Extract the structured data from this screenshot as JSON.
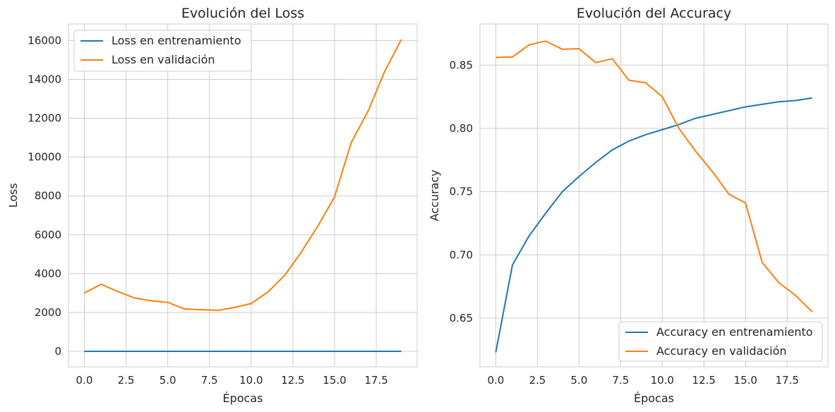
{
  "colors": {
    "train": "#1f77b4",
    "val": "#ff7f0e",
    "grid": "#cccccc",
    "text": "#262626"
  },
  "chart_data": [
    {
      "type": "line",
      "title": "Evolución del Loss",
      "xlabel": "Épocas",
      "ylabel": "Loss",
      "xlim": [
        -0.95,
        19.95
      ],
      "ylim": [
        -800,
        16850
      ],
      "xticks": [
        0,
        2.5,
        5,
        7.5,
        10,
        12.5,
        15,
        17.5
      ],
      "xtick_labels": [
        "0.0",
        "2.5",
        "5.0",
        "7.5",
        "10.0",
        "12.5",
        "15.0",
        "17.5"
      ],
      "yticks": [
        0,
        2000,
        4000,
        6000,
        8000,
        10000,
        12000,
        14000,
        16000
      ],
      "ytick_labels": [
        "0",
        "2000",
        "4000",
        "6000",
        "8000",
        "10000",
        "12000",
        "14000",
        "16000"
      ],
      "grid": true,
      "legend": "upper-left",
      "x": [
        0,
        1,
        2,
        3,
        4,
        5,
        6,
        7,
        8,
        9,
        10,
        11,
        12,
        13,
        14,
        15,
        16,
        17,
        18,
        19
      ],
      "series": [
        {
          "name": "Loss en entrenamiento",
          "color_key": "train",
          "values": [
            0.4,
            0.4,
            0.4,
            0.4,
            0.4,
            0.4,
            0.4,
            0.4,
            0.4,
            0.4,
            0.4,
            0.4,
            0.4,
            0.4,
            0.4,
            0.4,
            0.4,
            0.4,
            0.4,
            0.4
          ]
        },
        {
          "name": "Loss en validación",
          "color_key": "val",
          "values": [
            3000,
            3450,
            3080,
            2750,
            2600,
            2520,
            2180,
            2140,
            2110,
            2260,
            2460,
            3050,
            3900,
            5100,
            6450,
            7950,
            10750,
            12350,
            14400,
            16050
          ]
        }
      ]
    },
    {
      "type": "line",
      "title": "Evolución del Accuracy",
      "xlabel": "Épocas",
      "ylabel": "Accuracy",
      "xlim": [
        -0.95,
        19.95
      ],
      "ylim": [
        0.6115,
        0.8825
      ],
      "xticks": [
        0,
        2.5,
        5,
        7.5,
        10,
        12.5,
        15,
        17.5
      ],
      "xtick_labels": [
        "0.0",
        "2.5",
        "5.0",
        "7.5",
        "10.0",
        "12.5",
        "15.0",
        "17.5"
      ],
      "yticks": [
        0.65,
        0.7,
        0.75,
        0.8,
        0.85
      ],
      "ytick_labels": [
        "0.65",
        "0.70",
        "0.75",
        "0.80",
        "0.85"
      ],
      "grid": true,
      "legend": "lower-right",
      "x": [
        0,
        1,
        2,
        3,
        4,
        5,
        6,
        7,
        8,
        9,
        10,
        11,
        12,
        13,
        14,
        15,
        16,
        17,
        18,
        19
      ],
      "series": [
        {
          "name": "Accuracy en entrenamiento",
          "color_key": "train",
          "values": [
            0.623,
            0.692,
            0.715,
            0.733,
            0.75,
            0.762,
            0.773,
            0.783,
            0.79,
            0.795,
            0.799,
            0.803,
            0.808,
            0.811,
            0.814,
            0.817,
            0.819,
            0.821,
            0.822,
            0.824
          ]
        },
        {
          "name": "Accuracy en validación",
          "color_key": "val",
          "values": [
            0.856,
            0.8565,
            0.866,
            0.869,
            0.8625,
            0.863,
            0.852,
            0.855,
            0.838,
            0.836,
            0.825,
            0.8,
            0.782,
            0.766,
            0.748,
            0.741,
            0.694,
            0.678,
            0.668,
            0.655
          ]
        }
      ]
    }
  ]
}
